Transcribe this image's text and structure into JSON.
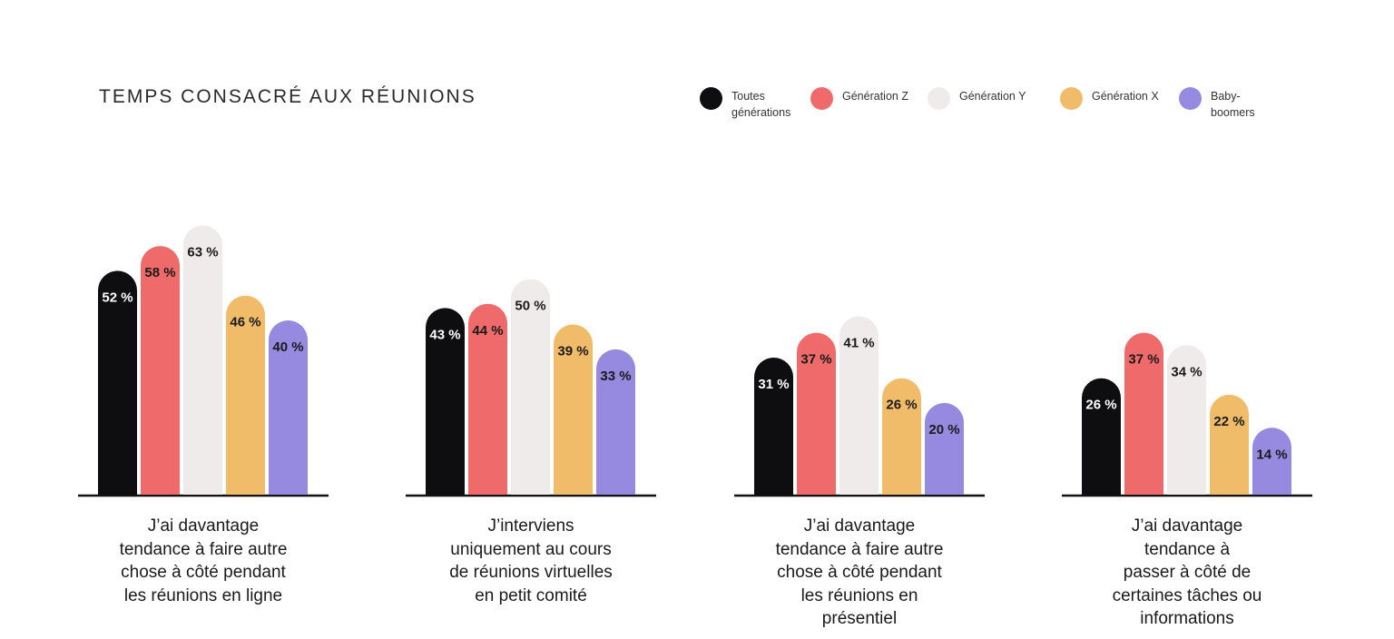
{
  "chart_data": {
    "type": "bar",
    "title": "TEMPS CONSACRÉ AUX RÉUNIONS",
    "categories": [
      "J’ai davantage tendance à faire autre chose à côté pendant les réunions en ligne",
      "J’interviens uniquement au cours de réunions virtuelles en petit comité",
      "J’ai davantage tendance à faire autre chose à côté pendant les réunions en présentiel",
      "J’ai davantage tendance à passer à côté de certaines tâches ou informations"
    ],
    "category_lines": [
      [
        "J’ai davantage",
        "tendance à faire autre",
        "chose à côté pendant",
        "les réunions en ligne"
      ],
      [
        "J’interviens",
        "uniquement au cours",
        "de réunions virtuelles",
        "en petit comité"
      ],
      [
        "J’ai davantage",
        "tendance à faire autre",
        "chose à côté pendant",
        "les réunions en",
        "présentiel"
      ],
      [
        "J’ai davantage",
        "tendance à",
        "passer à côté de",
        "certaines tâches ou",
        "informations"
      ]
    ],
    "series": [
      {
        "name": "Toutes générations",
        "name_lines": [
          "Toutes",
          "générations"
        ],
        "color": "#0e0e10",
        "label_color": "#ffffff",
        "values": [
          52,
          43,
          31,
          26
        ]
      },
      {
        "name": "Génération Z",
        "name_lines": [
          "Génération Z"
        ],
        "color": "#ef6b6b",
        "label_color": "#1a1a1a",
        "values": [
          58,
          44,
          37,
          37
        ]
      },
      {
        "name": "Génération Y",
        "name_lines": [
          "Génération Y"
        ],
        "color": "#eeebea",
        "label_color": "#1a1a1a",
        "values": [
          63,
          50,
          41,
          34
        ]
      },
      {
        "name": "Génération X",
        "name_lines": [
          "Génération X"
        ],
        "color": "#f0bc6a",
        "label_color": "#1a1a1a",
        "values": [
          46,
          39,
          26,
          22
        ]
      },
      {
        "name": "Baby-boomers",
        "name_lines": [
          "Baby-boomers"
        ],
        "color": "#9589e0",
        "label_color": "#1a1a1a",
        "values": [
          40,
          33,
          20,
          14
        ]
      }
    ],
    "value_suffix": " %",
    "ylim": [
      0,
      100
    ],
    "grid": false,
    "legend_position": "top-right",
    "xlabel": "",
    "ylabel": ""
  }
}
